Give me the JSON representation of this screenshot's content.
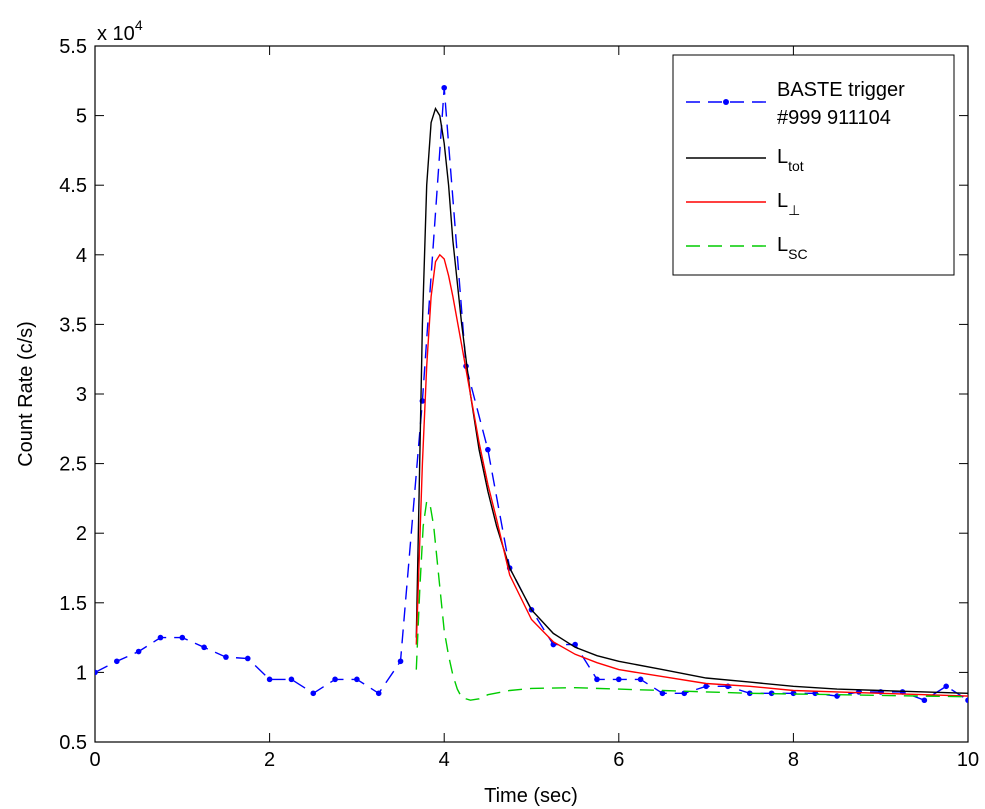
{
  "chart_data": {
    "type": "line",
    "xlabel": "Time (sec)",
    "ylabel": "Count Rate (c/s)",
    "exponent_label": "x 10",
    "exponent_power": "4",
    "xlim": [
      0,
      10
    ],
    "ylim": [
      5000,
      55000
    ],
    "x_ticks": [
      0,
      2,
      4,
      6,
      8,
      10
    ],
    "x_tick_labels": [
      "0",
      "2",
      "4",
      "6",
      "8",
      "10"
    ],
    "y_ticks": [
      5000,
      10000,
      15000,
      20000,
      25000,
      30000,
      35000,
      40000,
      45000,
      50000,
      55000
    ],
    "y_tick_labels": [
      "0.5",
      "1",
      "1.5",
      "2",
      "2.5",
      "3",
      "3.5",
      "4",
      "4.5",
      "5",
      "5.5"
    ],
    "grid": false,
    "legend_position": "top-right",
    "series": [
      {
        "key": "baste",
        "name_line1": "BASTE trigger",
        "name_line2": "#999 911104",
        "color": "#0000ff",
        "style": "dashed-dots",
        "x": [
          0,
          0.25,
          0.5,
          0.75,
          1.0,
          1.25,
          1.5,
          1.75,
          2.0,
          2.25,
          2.5,
          2.75,
          3.0,
          3.25,
          3.5,
          3.75,
          4.0,
          4.25,
          4.5,
          4.75,
          5.0,
          5.25,
          5.5,
          5.75,
          6.0,
          6.25,
          6.5,
          6.75,
          7.0,
          7.25,
          7.5,
          7.75,
          8.0,
          8.25,
          8.5,
          8.75,
          9.0,
          9.25,
          9.5,
          9.75,
          10.0
        ],
        "y": [
          10000,
          10800,
          11500,
          12500,
          12500,
          11800,
          11100,
          11000,
          9500,
          9500,
          8500,
          9500,
          9500,
          8500,
          10800,
          29500,
          52000,
          32000,
          26000,
          17500,
          14500,
          12000,
          12000,
          9500,
          9500,
          9500,
          8500,
          8500,
          9000,
          9000,
          8500,
          8500,
          8500,
          8500,
          8300,
          8600,
          8600,
          8600,
          8000,
          9000,
          8000
        ]
      },
      {
        "key": "ltot",
        "name_main": "L",
        "name_sub": "tot",
        "color": "#000000",
        "style": "solid",
        "x": [
          3.68,
          3.75,
          3.8,
          3.85,
          3.9,
          3.95,
          4.0,
          4.05,
          4.1,
          4.2,
          4.3,
          4.4,
          4.5,
          4.6,
          4.75,
          5.0,
          5.25,
          5.5,
          5.75,
          6.0,
          6.5,
          7.0,
          7.5,
          8.0,
          8.5,
          9.0,
          9.5,
          10.0
        ],
        "y": [
          12500,
          35000,
          45000,
          49500,
          50500,
          50000,
          48000,
          45000,
          41000,
          35000,
          30000,
          26000,
          23000,
          20500,
          17500,
          14500,
          12800,
          11800,
          11200,
          10800,
          10200,
          9600,
          9300,
          9000,
          8800,
          8700,
          8600,
          8500
        ]
      },
      {
        "key": "lperp",
        "name_main": "L",
        "name_sub": "⊥",
        "color": "#ff0000",
        "style": "solid",
        "x": [
          3.68,
          3.75,
          3.8,
          3.85,
          3.9,
          3.95,
          4.0,
          4.05,
          4.1,
          4.2,
          4.3,
          4.4,
          4.5,
          4.6,
          4.75,
          5.0,
          5.25,
          5.5,
          5.75,
          6.0,
          6.5,
          7.0,
          7.5,
          8.0,
          8.5,
          9.0,
          9.5,
          10.0
        ],
        "y": [
          12000,
          25000,
          32000,
          37000,
          39500,
          40000,
          39700,
          38500,
          37000,
          33500,
          30000,
          26500,
          23500,
          21000,
          17000,
          13800,
          12200,
          11300,
          10700,
          10200,
          9700,
          9200,
          9000,
          8700,
          8600,
          8500,
          8400,
          8300
        ]
      },
      {
        "key": "lsc",
        "name_main": "L",
        "name_sub": "SC",
        "color": "#00cc00",
        "style": "dashed",
        "x": [
          3.68,
          3.72,
          3.76,
          3.8,
          3.84,
          3.88,
          3.92,
          3.96,
          4.0,
          4.05,
          4.1,
          4.15,
          4.2,
          4.3,
          4.4,
          4.5,
          4.75,
          5.0,
          5.5,
          6.0,
          6.5,
          7.0,
          7.5,
          8.0,
          8.5,
          9.0,
          9.5,
          10.0
        ],
        "y": [
          10200,
          16000,
          20500,
          22300,
          22000,
          20500,
          18000,
          15500,
          13000,
          11200,
          9800,
          8800,
          8200,
          8000,
          8100,
          8400,
          8700,
          8850,
          8900,
          8800,
          8700,
          8600,
          8500,
          8450,
          8400,
          8350,
          8300,
          8250
        ]
      }
    ]
  }
}
